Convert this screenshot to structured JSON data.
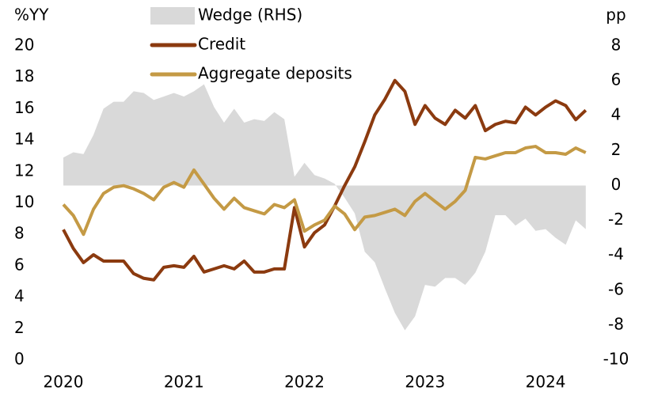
{
  "chart_data": {
    "type": "line",
    "y_label": "%YY",
    "y2_label": "pp",
    "x": [
      2020,
      2020.083,
      2020.167,
      2020.25,
      2020.333,
      2020.417,
      2020.5,
      2020.583,
      2020.667,
      2020.75,
      2020.833,
      2020.917,
      2021,
      2021.083,
      2021.167,
      2021.25,
      2021.333,
      2021.417,
      2021.5,
      2021.583,
      2021.667,
      2021.75,
      2021.833,
      2021.917,
      2022,
      2022.083,
      2022.167,
      2022.25,
      2022.333,
      2022.417,
      2022.5,
      2022.583,
      2022.667,
      2022.75,
      2022.833,
      2022.917,
      2023,
      2023.083,
      2023.167,
      2023.25,
      2023.333,
      2023.417,
      2023.5,
      2023.583,
      2023.667,
      2023.75,
      2023.833,
      2023.917,
      2024,
      2024.083,
      2024.167,
      2024.25,
      2024.333
    ],
    "xlim": [
      2020,
      2024.4
    ],
    "xticks": [
      2020,
      2021,
      2022,
      2023,
      2024
    ],
    "ylim": [
      0,
      20
    ],
    "yticks": [
      0,
      2,
      4,
      6,
      8,
      10,
      12,
      14,
      16,
      18,
      20
    ],
    "y2lim": [
      -10,
      8
    ],
    "y2ticks": [
      -10,
      -8,
      -6,
      -4,
      -2,
      0,
      2,
      4,
      6,
      8
    ],
    "series": [
      {
        "name": "Wedge (RHS)",
        "type": "area",
        "axis": "y2",
        "color": "#d9d9d9",
        "values": [
          1.6,
          1.9,
          1.8,
          2.9,
          4.4,
          4.8,
          4.8,
          5.4,
          5.3,
          4.9,
          5.1,
          5.3,
          5.1,
          5.4,
          5.8,
          4.5,
          3.6,
          4.4,
          3.6,
          3.8,
          3.7,
          4.2,
          3.8,
          0.5,
          1.3,
          0.6,
          0.4,
          0.1,
          -0.7,
          -1.6,
          -3.8,
          -4.4,
          -5.9,
          -7.3,
          -8.3,
          -7.5,
          -5.7,
          -5.8,
          -5.3,
          -5.3,
          -5.7,
          -5.0,
          -3.8,
          -1.7,
          -1.7,
          -2.3,
          -1.9,
          -2.6,
          -2.5,
          -3.0,
          -3.4,
          -2.0,
          -2.5
        ]
      },
      {
        "name": "Credit",
        "color": "#8b3a0f",
        "values": [
          8.3,
          7.1,
          6.2,
          6.7,
          6.3,
          6.3,
          6.3,
          5.5,
          5.2,
          5.1,
          5.9,
          6.0,
          5.9,
          6.6,
          5.6,
          5.8,
          6.0,
          5.8,
          6.3,
          5.6,
          5.6,
          5.8,
          5.8,
          9.7,
          7.2,
          8.1,
          8.6,
          9.8,
          11.1,
          12.3,
          13.9,
          15.6,
          16.6,
          17.8,
          17.1,
          15.0,
          16.2,
          15.4,
          15.0,
          15.9,
          15.4,
          16.2,
          14.6,
          15.0,
          15.2,
          15.1,
          16.1,
          15.6,
          16.1,
          16.5,
          16.2,
          15.3,
          15.9
        ]
      },
      {
        "name": "Aggregate deposits",
        "color": "#c49a45",
        "values": [
          9.9,
          9.2,
          8.0,
          9.6,
          10.6,
          11.0,
          11.1,
          10.9,
          10.6,
          10.2,
          11.0,
          11.3,
          11.0,
          12.1,
          11.2,
          10.3,
          9.6,
          10.3,
          9.7,
          9.5,
          9.3,
          9.9,
          9.7,
          10.2,
          8.2,
          8.6,
          8.9,
          9.8,
          9.3,
          8.3,
          9.1,
          9.2,
          9.4,
          9.6,
          9.2,
          10.1,
          10.6,
          10.1,
          9.6,
          10.1,
          10.8,
          12.9,
          12.8,
          13.0,
          13.2,
          13.2,
          13.5,
          13.6,
          13.2,
          13.2,
          13.1,
          13.5,
          13.2
        ]
      }
    ]
  }
}
